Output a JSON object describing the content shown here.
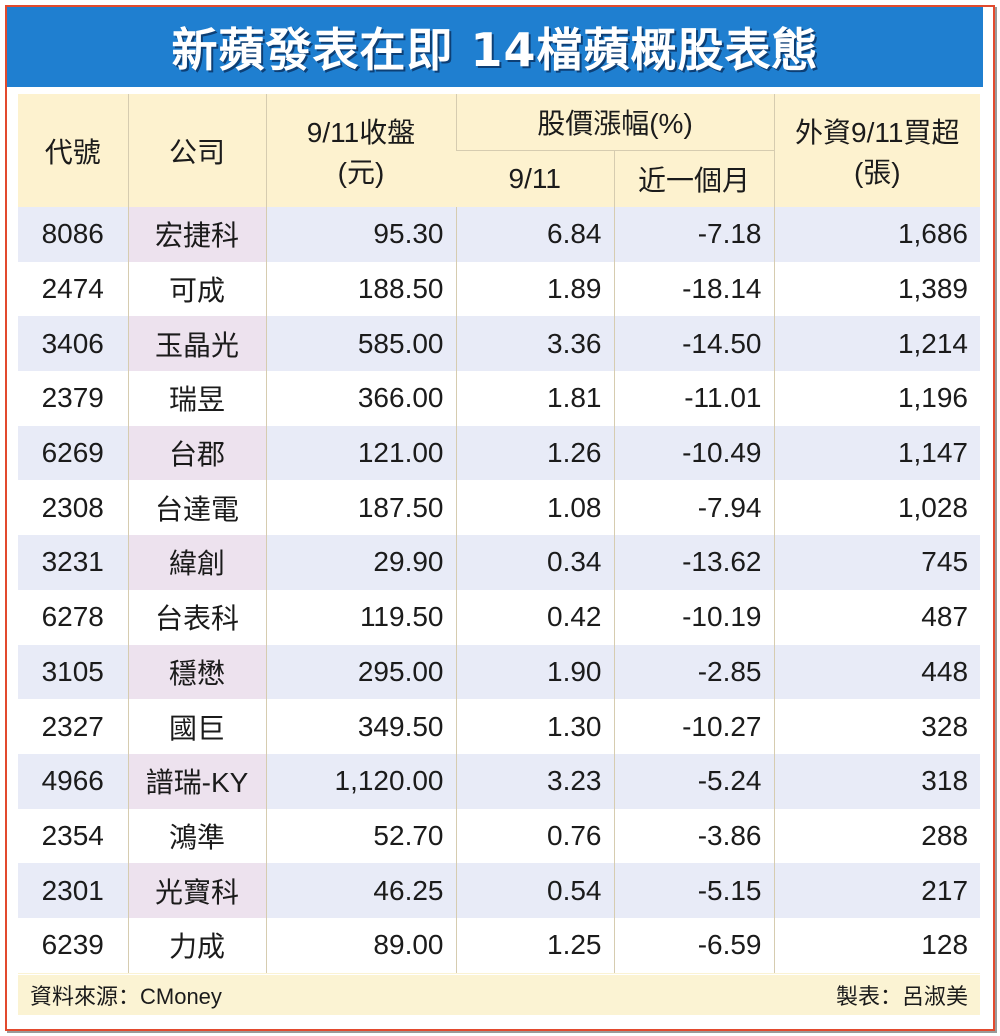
{
  "title": "新蘋發表在即  14檔蘋概股表態",
  "headers": {
    "code": "代號",
    "company": "公司",
    "close_line1": "9/11收盤",
    "close_line2": "(元)",
    "change_group": "股價漲幅(%)",
    "change_day": "9/11",
    "change_month": "近一個月",
    "foreign_line1": "外資9/11買超",
    "foreign_line2": "(張)"
  },
  "rows": [
    {
      "code": "8086",
      "company": "宏捷科",
      "close": "95.30",
      "change_day": "6.84",
      "change_month": "-7.18",
      "foreign": "1,686"
    },
    {
      "code": "2474",
      "company": "可成",
      "close": "188.50",
      "change_day": "1.89",
      "change_month": "-18.14",
      "foreign": "1,389"
    },
    {
      "code": "3406",
      "company": "玉晶光",
      "close": "585.00",
      "change_day": "3.36",
      "change_month": "-14.50",
      "foreign": "1,214"
    },
    {
      "code": "2379",
      "company": "瑞昱",
      "close": "366.00",
      "change_day": "1.81",
      "change_month": "-11.01",
      "foreign": "1,196"
    },
    {
      "code": "6269",
      "company": "台郡",
      "close": "121.00",
      "change_day": "1.26",
      "change_month": "-10.49",
      "foreign": "1,147"
    },
    {
      "code": "2308",
      "company": "台達電",
      "close": "187.50",
      "change_day": "1.08",
      "change_month": "-7.94",
      "foreign": "1,028"
    },
    {
      "code": "3231",
      "company": "緯創",
      "close": "29.90",
      "change_day": "0.34",
      "change_month": "-13.62",
      "foreign": "745"
    },
    {
      "code": "6278",
      "company": "台表科",
      "close": "119.50",
      "change_day": "0.42",
      "change_month": "-10.19",
      "foreign": "487"
    },
    {
      "code": "3105",
      "company": "穩懋",
      "close": "295.00",
      "change_day": "1.90",
      "change_month": "-2.85",
      "foreign": "448"
    },
    {
      "code": "2327",
      "company": "國巨",
      "close": "349.50",
      "change_day": "1.30",
      "change_month": "-10.27",
      "foreign": "328"
    },
    {
      "code": "4966",
      "company": "譜瑞-KY",
      "close": "1,120.00",
      "change_day": "3.23",
      "change_month": "-5.24",
      "foreign": "318"
    },
    {
      "code": "2354",
      "company": "鴻準",
      "close": "52.70",
      "change_day": "0.76",
      "change_month": "-3.86",
      "foreign": "288"
    },
    {
      "code": "2301",
      "company": "光寶科",
      "close": "46.25",
      "change_day": "0.54",
      "change_month": "-5.15",
      "foreign": "217"
    },
    {
      "code": "6239",
      "company": "力成",
      "close": "89.00",
      "change_day": "1.25",
      "change_month": "-6.59",
      "foreign": "128"
    }
  ],
  "footer": {
    "source": "資料來源：CMoney",
    "author": "製表：呂淑美"
  },
  "colors": {
    "title_bg": "#1f7fd0",
    "border": "#e24a2e",
    "header_bg": "#fdf2cf",
    "row_alt_bg": "#e8ebf7",
    "company_alt_bg": "#ede2ee"
  }
}
